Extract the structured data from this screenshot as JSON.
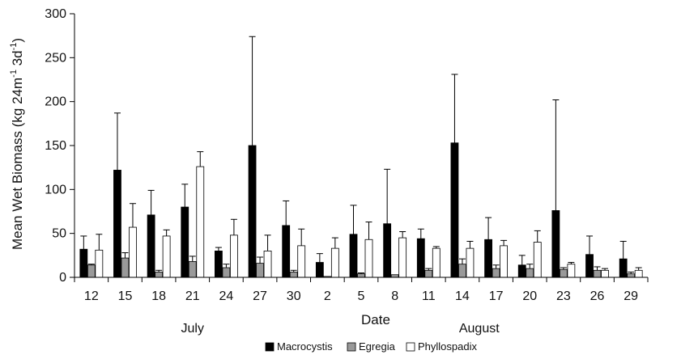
{
  "chart_data": {
    "type": "bar",
    "xlabel": "Date",
    "ylabel": "Mean Wet Biomass (kg 24m",
    "ylabel_sup1": "-1",
    "ylabel_mid": " 3d",
    "ylabel_sup2": "-1",
    "ylabel_end": ")",
    "ylim": [
      0,
      300
    ],
    "yticks": [
      0,
      50,
      100,
      150,
      200,
      250,
      300
    ],
    "grid": false,
    "legend_position": "bottom-center",
    "categories": [
      "12",
      "15",
      "18",
      "21",
      "24",
      "27",
      "30",
      "2",
      "5",
      "8",
      "11",
      "14",
      "17",
      "20",
      "23",
      "26",
      "29"
    ],
    "groups": [
      {
        "label": "July",
        "category_range": [
          0,
          6
        ]
      },
      {
        "label": "August",
        "category_range": [
          7,
          16
        ]
      }
    ],
    "series": [
      {
        "name": "Macrocystis",
        "color": "#000000",
        "values": [
          32,
          122,
          71,
          80,
          30,
          150,
          59,
          17,
          49,
          61,
          44,
          153,
          43,
          14,
          76,
          26,
          21
        ],
        "error": [
          15,
          65,
          28,
          26,
          4,
          124,
          28,
          10,
          33,
          62,
          11,
          78,
          25,
          11,
          126,
          21,
          20
        ]
      },
      {
        "name": "Egregia",
        "color": "#999999",
        "values": [
          14,
          22,
          6,
          18,
          11,
          16,
          6,
          1,
          4,
          3,
          8,
          15,
          10,
          10,
          9,
          8,
          4
        ],
        "error": [
          1,
          6,
          2,
          6,
          4,
          7,
          2,
          0,
          1,
          0,
          2,
          6,
          4,
          5,
          2,
          4,
          2
        ]
      },
      {
        "name": "Phyllospadix",
        "color": "#ffffff",
        "values": [
          31,
          57,
          47,
          126,
          48,
          30,
          36,
          33,
          43,
          45,
          33,
          33,
          36,
          40,
          15,
          8,
          8
        ],
        "error": [
          18,
          27,
          7,
          17,
          18,
          18,
          19,
          12,
          20,
          7,
          2,
          8,
          6,
          13,
          2,
          2,
          3
        ]
      }
    ]
  }
}
